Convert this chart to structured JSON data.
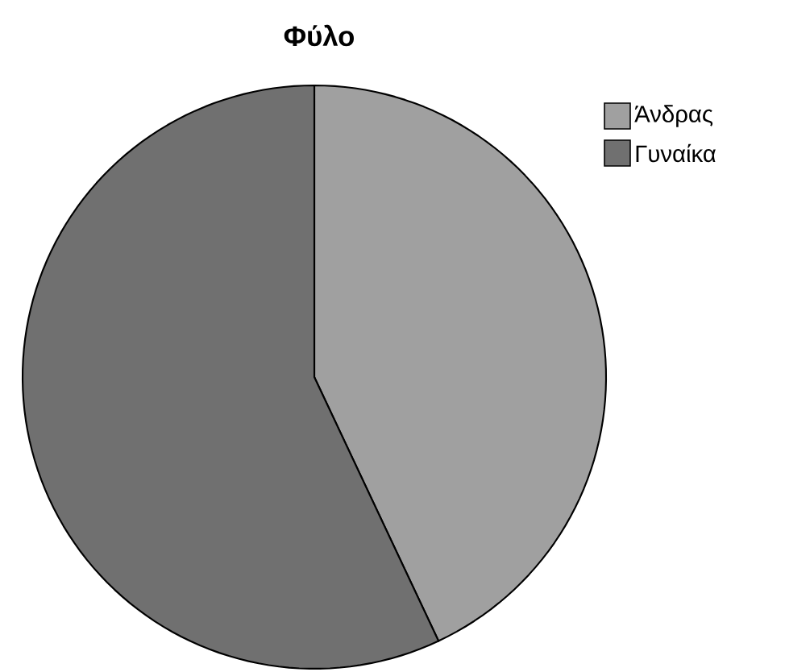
{
  "chart_data": {
    "type": "pie",
    "title": "Φύλο",
    "categories": [
      "Άνδρας",
      "Γυναίκα"
    ],
    "values": [
      43,
      57
    ],
    "colors": [
      "#a0a0a0",
      "#707070"
    ],
    "legend": "top right"
  }
}
